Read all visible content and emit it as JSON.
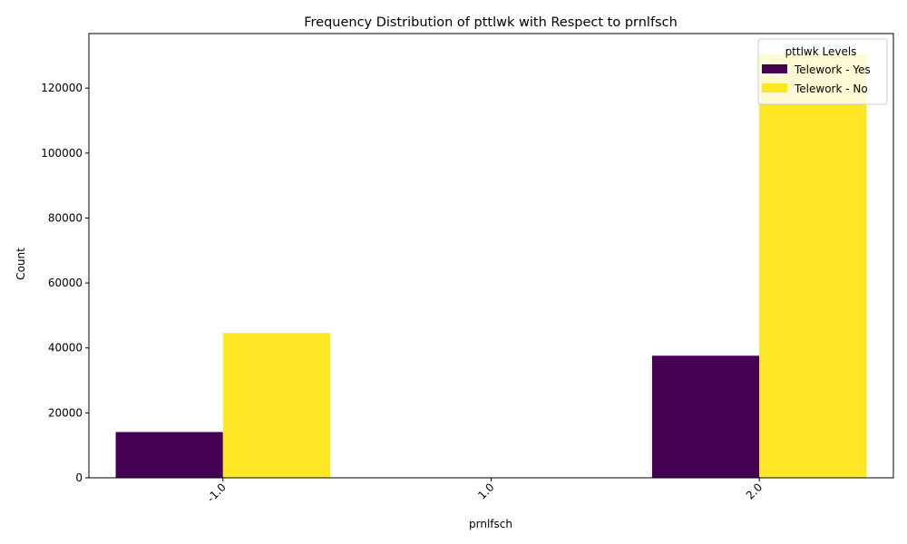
{
  "chart_data": {
    "type": "bar",
    "title": "Frequency Distribution of pttlwk with Respect to prnlfsch",
    "xlabel": "prnlfsch",
    "ylabel": "Count",
    "categories": [
      "-1.0",
      "1.0",
      "2.0"
    ],
    "series": [
      {
        "name": "Telework - Yes",
        "color": "#440154",
        "values": [
          14100,
          0,
          37600
        ]
      },
      {
        "name": "Telework - No",
        "color": "#fde725",
        "values": [
          44600,
          0,
          130500
        ]
      }
    ],
    "ylim": [
      0,
      136800
    ],
    "yticks": [
      0,
      20000,
      40000,
      60000,
      80000,
      100000,
      120000
    ],
    "legend": {
      "title": "pttlwk Levels",
      "placement": "top-right"
    },
    "grid": false,
    "bar_opacity": 0.8
  }
}
